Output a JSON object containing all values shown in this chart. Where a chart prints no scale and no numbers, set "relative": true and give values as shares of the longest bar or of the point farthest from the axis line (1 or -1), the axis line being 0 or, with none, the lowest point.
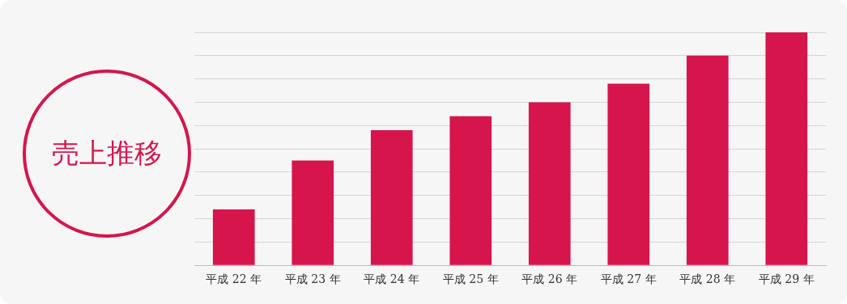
{
  "chart_data": {
    "type": "bar",
    "title": "売上推移",
    "relative": true,
    "grid": "y",
    "categories": [
      "平成 22 年",
      "平成 23 年",
      "平成 24 年",
      "平成 25 年",
      "平成 26 年",
      "平成 27 年",
      "平成 28 年",
      "平成 29 年"
    ],
    "values": [
      0.24,
      0.45,
      0.58,
      0.64,
      0.7,
      0.78,
      0.9,
      1
    ],
    "color": "#d6154c"
  }
}
